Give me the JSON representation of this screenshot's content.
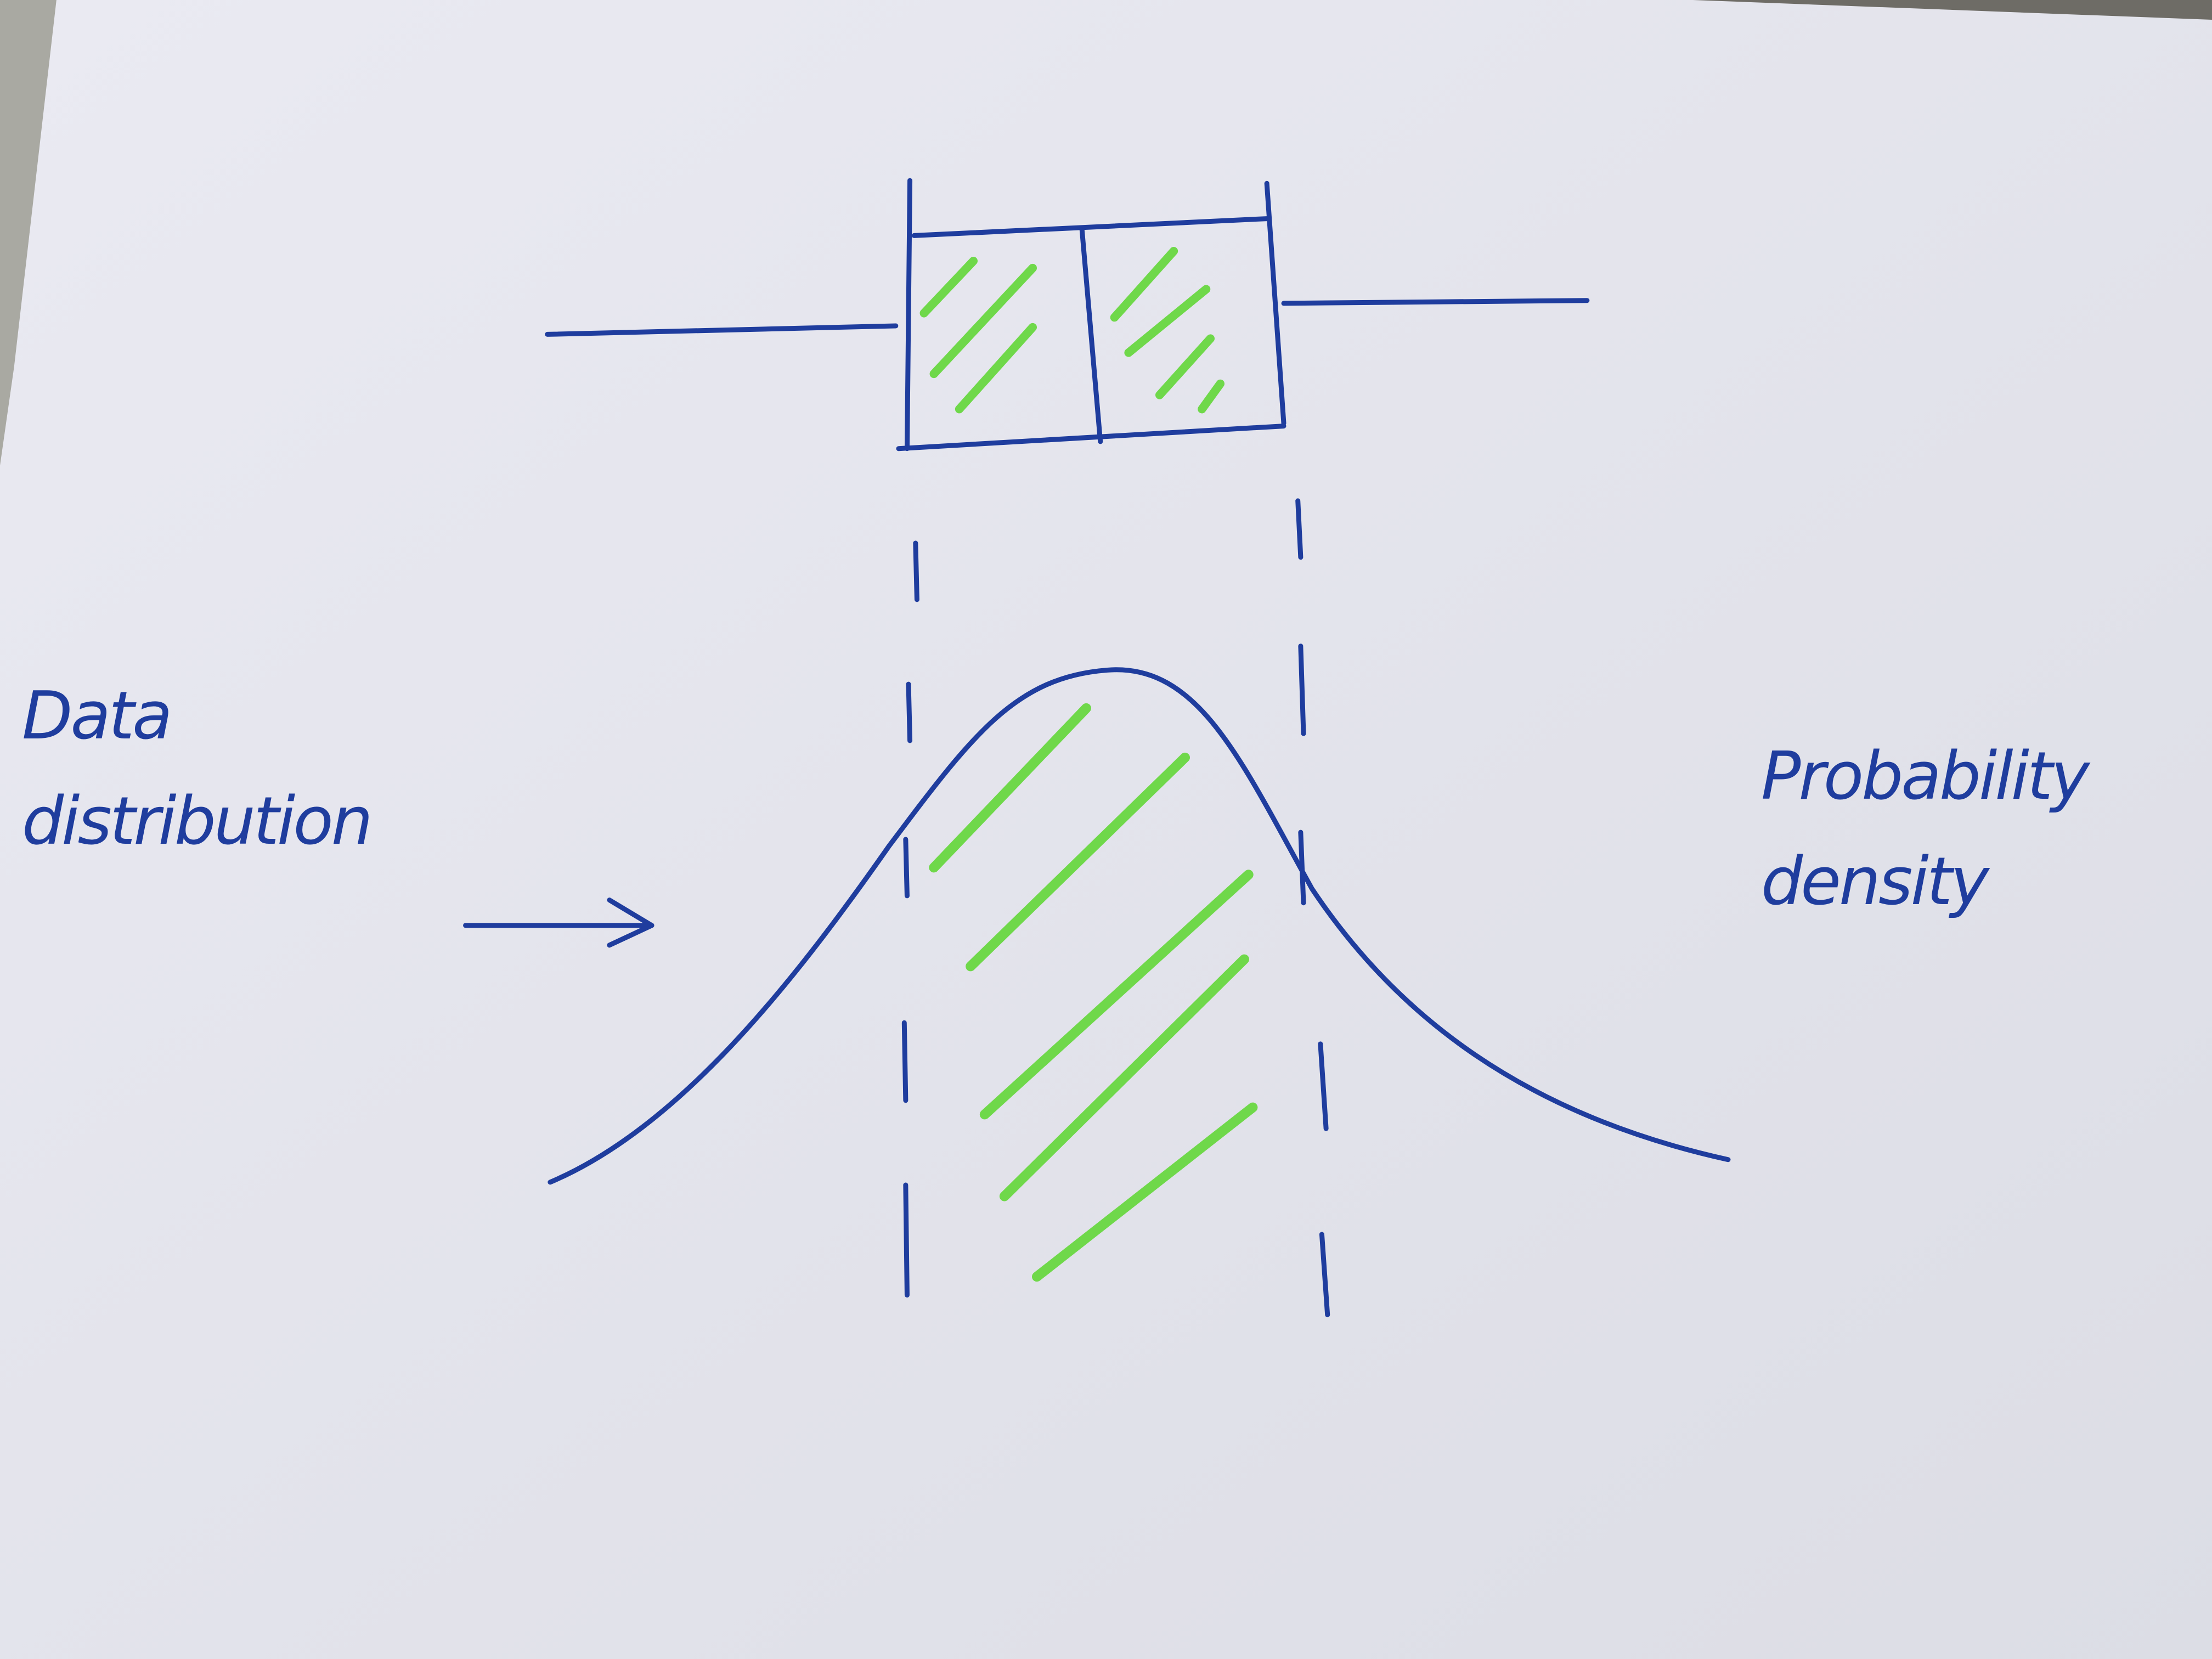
{
  "labels": [
    {
      "text": "Data distribution"
    },
    {
      "text": "Probability density"
    }
  ]
}
